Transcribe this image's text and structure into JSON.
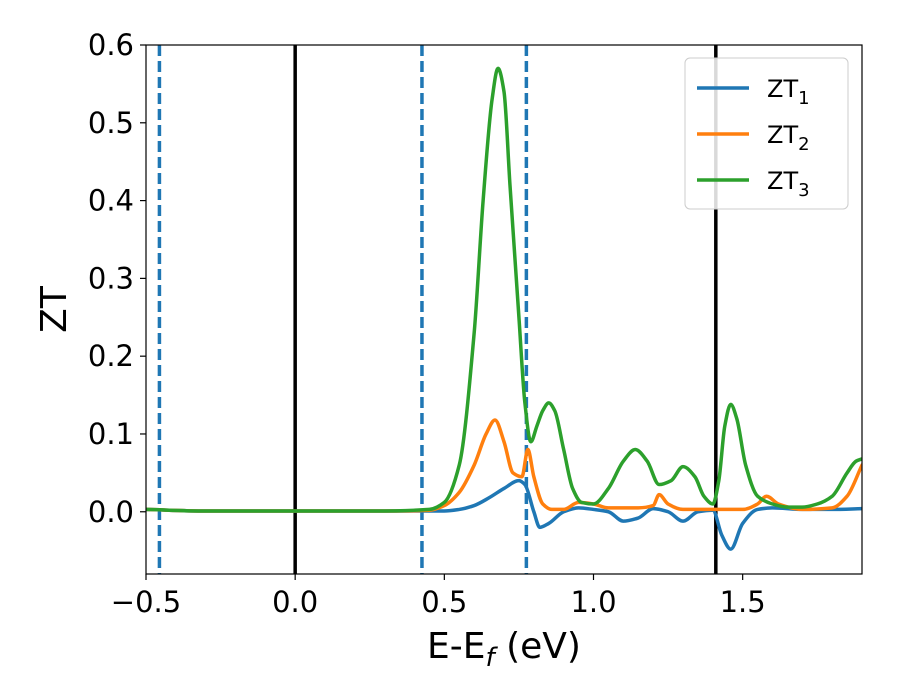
{
  "chart_data": {
    "type": "line",
    "title": "",
    "xlabel": "E-E",
    "xlabel_sub": "f",
    "xlabel_unit": " (eV)",
    "ylabel": "ZT",
    "xlim": [
      -0.5,
      1.9
    ],
    "ylim": [
      -0.08,
      0.6
    ],
    "xticks": [
      -0.5,
      0.0,
      0.5,
      1.0,
      1.5
    ],
    "xtick_labels": [
      "−0.5",
      "0.0",
      "0.5",
      "1.0",
      "1.5"
    ],
    "yticks": [
      0.0,
      0.1,
      0.2,
      0.3,
      0.4,
      0.5,
      0.6
    ],
    "ytick_labels": [
      "0.0",
      "0.1",
      "0.2",
      "0.3",
      "0.4",
      "0.5",
      "0.6"
    ],
    "grid": false,
    "legend_position": "top-right",
    "vlines": [
      {
        "x": -0.455,
        "color": "#1f77b4",
        "style": "dashed"
      },
      {
        "x": 0.0,
        "color": "#000000",
        "style": "solid"
      },
      {
        "x": 0.425,
        "color": "#1f77b4",
        "style": "dashed"
      },
      {
        "x": 0.775,
        "color": "#1f77b4",
        "style": "dashed"
      },
      {
        "x": 1.41,
        "color": "#000000",
        "style": "solid"
      }
    ],
    "series": [
      {
        "name": "ZT",
        "name_sub": "1",
        "color": "#1f77b4",
        "x": [
          -0.5,
          -0.3,
          0.0,
          0.3,
          0.5,
          0.55,
          0.6,
          0.65,
          0.7,
          0.75,
          0.77,
          0.8,
          0.82,
          0.85,
          0.9,
          0.95,
          1.0,
          1.05,
          1.1,
          1.15,
          1.2,
          1.25,
          1.3,
          1.35,
          1.4,
          1.43,
          1.46,
          1.5,
          1.55,
          1.6,
          1.7,
          1.8,
          1.9
        ],
        "y": [
          0.003,
          0.001,
          0.001,
          0.001,
          0.001,
          0.003,
          0.008,
          0.018,
          0.03,
          0.04,
          0.035,
          0.0,
          -0.02,
          -0.015,
          0.0,
          0.005,
          0.003,
          0.0,
          -0.012,
          -0.008,
          0.004,
          0.0,
          -0.012,
          0.0,
          0.002,
          -0.03,
          -0.048,
          -0.015,
          0.003,
          0.005,
          0.003,
          0.003,
          0.004
        ]
      },
      {
        "name": "ZT",
        "name_sub": "2",
        "color": "#ff7f0e",
        "x": [
          -0.5,
          -0.3,
          0.0,
          0.3,
          0.45,
          0.5,
          0.55,
          0.6,
          0.64,
          0.67,
          0.7,
          0.73,
          0.76,
          0.78,
          0.8,
          0.83,
          0.86,
          0.9,
          0.95,
          1.0,
          1.05,
          1.1,
          1.15,
          1.2,
          1.22,
          1.25,
          1.3,
          1.35,
          1.4,
          1.45,
          1.5,
          1.55,
          1.58,
          1.62,
          1.7,
          1.8,
          1.85,
          1.9
        ],
        "y": [
          0.003,
          0.001,
          0.001,
          0.001,
          0.002,
          0.008,
          0.025,
          0.06,
          0.1,
          0.118,
          0.09,
          0.05,
          0.045,
          0.08,
          0.045,
          0.01,
          0.003,
          0.003,
          0.012,
          0.01,
          0.005,
          0.005,
          0.005,
          0.008,
          0.022,
          0.01,
          0.003,
          0.003,
          0.003,
          0.003,
          0.003,
          0.01,
          0.02,
          0.01,
          0.003,
          0.005,
          0.02,
          0.06
        ]
      },
      {
        "name": "ZT",
        "name_sub": "3",
        "color": "#2ca02c",
        "x": [
          -0.5,
          -0.3,
          0.0,
          0.3,
          0.45,
          0.5,
          0.55,
          0.6,
          0.63,
          0.66,
          0.68,
          0.7,
          0.72,
          0.75,
          0.77,
          0.79,
          0.81,
          0.83,
          0.85,
          0.87,
          0.9,
          0.93,
          0.96,
          1.0,
          1.05,
          1.1,
          1.14,
          1.18,
          1.22,
          1.26,
          1.3,
          1.34,
          1.37,
          1.4,
          1.42,
          1.44,
          1.46,
          1.48,
          1.51,
          1.55,
          1.6,
          1.65,
          1.7,
          1.75,
          1.8,
          1.85,
          1.88,
          1.9
        ],
        "y": [
          0.003,
          0.001,
          0.001,
          0.001,
          0.003,
          0.012,
          0.06,
          0.23,
          0.4,
          0.53,
          0.57,
          0.54,
          0.42,
          0.25,
          0.14,
          0.09,
          0.11,
          0.13,
          0.14,
          0.13,
          0.08,
          0.03,
          0.012,
          0.01,
          0.03,
          0.065,
          0.08,
          0.065,
          0.035,
          0.04,
          0.058,
          0.045,
          0.02,
          0.01,
          0.04,
          0.11,
          0.138,
          0.12,
          0.06,
          0.02,
          0.01,
          0.006,
          0.006,
          0.01,
          0.02,
          0.05,
          0.065,
          0.068
        ]
      }
    ]
  }
}
